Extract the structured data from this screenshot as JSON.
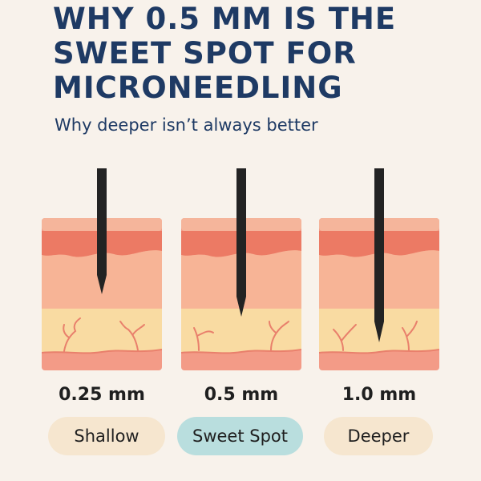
{
  "header": {
    "title_lines": [
      "WHY 0.5 MM IS THE",
      "SWEET SPOT FOR",
      "MICRONEEDLING"
    ],
    "subtitle": "Why deeper isn’t always better"
  },
  "panels": [
    {
      "depth": "0.25 mm",
      "label": "Shallow",
      "needle_depth_fraction": 0.5,
      "pill_color": "#f6e6cf"
    },
    {
      "depth": "0.5 mm",
      "label": "Sweet Spot",
      "needle_depth_fraction": 0.65,
      "pill_color": "#b9dede"
    },
    {
      "depth": "1.0 mm",
      "label": "Deeper",
      "needle_depth_fraction": 0.85,
      "pill_color": "#f6e6cf"
    }
  ],
  "colors": {
    "background": "#f8f2eb",
    "title": "#1e3a64",
    "epidermis_top": "#f4b29a",
    "epidermis": "#ec7a64",
    "dermis": "#f7b496",
    "fat": "#f9dba2",
    "base": "#f39b87",
    "vessel": "#e9806c",
    "needle": "#232323"
  }
}
